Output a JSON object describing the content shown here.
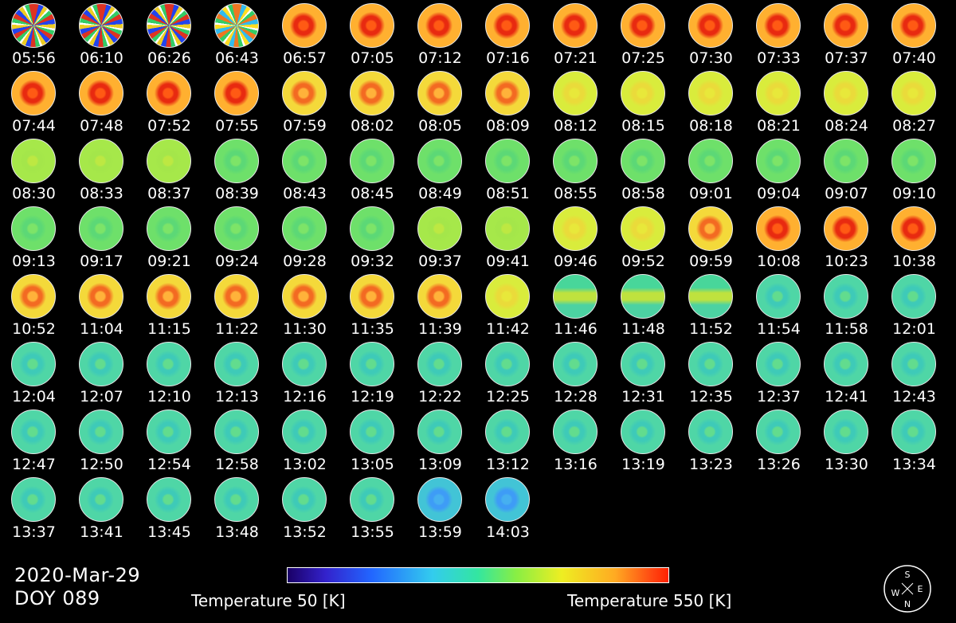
{
  "frames": [
    {
      "time": "05:56",
      "mode": "noise"
    },
    {
      "time": "06:10",
      "mode": "noise"
    },
    {
      "time": "06:26",
      "mode": "noise"
    },
    {
      "time": "06:43",
      "mode": "noise2"
    },
    {
      "time": "06:57",
      "mode": "ringhot"
    },
    {
      "time": "07:05",
      "mode": "ringhot"
    },
    {
      "time": "07:12",
      "mode": "ringhot"
    },
    {
      "time": "07:16",
      "mode": "ringhot"
    },
    {
      "time": "07:21",
      "mode": "ringhot"
    },
    {
      "time": "07:25",
      "mode": "ringhot"
    },
    {
      "time": "07:30",
      "mode": "ringhot"
    },
    {
      "time": "07:33",
      "mode": "ringhot"
    },
    {
      "time": "07:37",
      "mode": "ringhot"
    },
    {
      "time": "07:40",
      "mode": "ringhot"
    },
    {
      "time": "07:44",
      "mode": "ringhot"
    },
    {
      "time": "07:48",
      "mode": "ringhot"
    },
    {
      "time": "07:52",
      "mode": "ringhot"
    },
    {
      "time": "07:55",
      "mode": "ringhot"
    },
    {
      "time": "07:59",
      "mode": "ringwarm"
    },
    {
      "time": "08:02",
      "mode": "ringwarm"
    },
    {
      "time": "08:05",
      "mode": "ringwarm"
    },
    {
      "time": "08:09",
      "mode": "ringwarm"
    },
    {
      "time": "08:12",
      "mode": "yellow"
    },
    {
      "time": "08:15",
      "mode": "yellow"
    },
    {
      "time": "08:18",
      "mode": "yellow"
    },
    {
      "time": "08:21",
      "mode": "yellow"
    },
    {
      "time": "08:24",
      "mode": "yellow"
    },
    {
      "time": "08:27",
      "mode": "yellow"
    },
    {
      "time": "08:30",
      "mode": "ygreen"
    },
    {
      "time": "08:33",
      "mode": "ygreen"
    },
    {
      "time": "08:37",
      "mode": "ygreen"
    },
    {
      "time": "08:39",
      "mode": "green"
    },
    {
      "time": "08:43",
      "mode": "green"
    },
    {
      "time": "08:45",
      "mode": "green"
    },
    {
      "time": "08:49",
      "mode": "green"
    },
    {
      "time": "08:51",
      "mode": "green"
    },
    {
      "time": "08:55",
      "mode": "green"
    },
    {
      "time": "08:58",
      "mode": "green"
    },
    {
      "time": "09:01",
      "mode": "green"
    },
    {
      "time": "09:04",
      "mode": "green"
    },
    {
      "time": "09:07",
      "mode": "green"
    },
    {
      "time": "09:10",
      "mode": "green"
    },
    {
      "time": "09:13",
      "mode": "green"
    },
    {
      "time": "09:17",
      "mode": "green"
    },
    {
      "time": "09:21",
      "mode": "green"
    },
    {
      "time": "09:24",
      "mode": "green"
    },
    {
      "time": "09:28",
      "mode": "green"
    },
    {
      "time": "09:32",
      "mode": "green"
    },
    {
      "time": "09:37",
      "mode": "ygreen"
    },
    {
      "time": "09:41",
      "mode": "ygreen"
    },
    {
      "time": "09:46",
      "mode": "yellow"
    },
    {
      "time": "09:52",
      "mode": "yellow"
    },
    {
      "time": "09:59",
      "mode": "ringwarm"
    },
    {
      "time": "10:08",
      "mode": "ringhot"
    },
    {
      "time": "10:23",
      "mode": "ringhot"
    },
    {
      "time": "10:38",
      "mode": "ringhot"
    },
    {
      "time": "10:52",
      "mode": "ringwarm"
    },
    {
      "time": "11:04",
      "mode": "ringwarm"
    },
    {
      "time": "11:15",
      "mode": "ringwarm"
    },
    {
      "time": "11:22",
      "mode": "ringwarm"
    },
    {
      "time": "11:30",
      "mode": "ringwarm"
    },
    {
      "time": "11:35",
      "mode": "ringwarm"
    },
    {
      "time": "11:39",
      "mode": "ringwarm"
    },
    {
      "time": "11:42",
      "mode": "yellow"
    },
    {
      "time": "11:46",
      "mode": "band"
    },
    {
      "time": "11:48",
      "mode": "band"
    },
    {
      "time": "11:52",
      "mode": "band"
    },
    {
      "time": "11:54",
      "mode": "cyan"
    },
    {
      "time": "11:58",
      "mode": "cyan"
    },
    {
      "time": "12:01",
      "mode": "cyan"
    },
    {
      "time": "12:04",
      "mode": "cyan"
    },
    {
      "time": "12:07",
      "mode": "cyan"
    },
    {
      "time": "12:10",
      "mode": "cyan"
    },
    {
      "time": "12:13",
      "mode": "cyan"
    },
    {
      "time": "12:16",
      "mode": "cyan"
    },
    {
      "time": "12:19",
      "mode": "cyan"
    },
    {
      "time": "12:22",
      "mode": "cyan"
    },
    {
      "time": "12:25",
      "mode": "cyan"
    },
    {
      "time": "12:28",
      "mode": "cyan"
    },
    {
      "time": "12:31",
      "mode": "cyan"
    },
    {
      "time": "12:35",
      "mode": "cyan"
    },
    {
      "time": "12:37",
      "mode": "cyan"
    },
    {
      "time": "12:41",
      "mode": "cyan"
    },
    {
      "time": "12:43",
      "mode": "cyan"
    },
    {
      "time": "12:47",
      "mode": "cyan"
    },
    {
      "time": "12:50",
      "mode": "cyan"
    },
    {
      "time": "12:54",
      "mode": "cyan"
    },
    {
      "time": "12:58",
      "mode": "cyan"
    },
    {
      "time": "13:02",
      "mode": "cyan"
    },
    {
      "time": "13:05",
      "mode": "cyan"
    },
    {
      "time": "13:09",
      "mode": "cyan"
    },
    {
      "time": "13:12",
      "mode": "cyan"
    },
    {
      "time": "13:16",
      "mode": "cyan"
    },
    {
      "time": "13:19",
      "mode": "cyan"
    },
    {
      "time": "13:23",
      "mode": "cyan"
    },
    {
      "time": "13:26",
      "mode": "cyan"
    },
    {
      "time": "13:30",
      "mode": "cyan"
    },
    {
      "time": "13:34",
      "mode": "cyan"
    },
    {
      "time": "13:37",
      "mode": "cyan"
    },
    {
      "time": "13:41",
      "mode": "cyan"
    },
    {
      "time": "13:45",
      "mode": "cyan"
    },
    {
      "time": "13:48",
      "mode": "cyan"
    },
    {
      "time": "13:52",
      "mode": "cyan"
    },
    {
      "time": "13:55",
      "mode": "cyan"
    },
    {
      "time": "13:59",
      "mode": "cool"
    },
    {
      "time": "14:03",
      "mode": "cool"
    }
  ],
  "date": "2020-Mar-29",
  "doy": "DOY 089",
  "colorbar": {
    "min_label": "Temperature 50 [K]",
    "max_label": "Temperature 550 [K]",
    "min_value": 50,
    "max_value": 550,
    "unit": "K",
    "colors": [
      "#1a0066",
      "#3322cc",
      "#2266ff",
      "#33ccee",
      "#33e6a0",
      "#88ee44",
      "#eeee22",
      "#ffaa22",
      "#ff4411",
      "#ff2200"
    ]
  },
  "compass": {
    "north": "N",
    "south": "S",
    "east": "E",
    "west": "W",
    "icon": "compass-rose-icon"
  },
  "mode_colors": {
    "ringhot": {
      "base": "#ffb030",
      "inner": "#ff5a14",
      "ring": "#e82a10"
    },
    "ringwarm": {
      "base": "#f4d93a",
      "inner": "#ffb23a",
      "ring": "#f36a22"
    },
    "yellow": {
      "base": "#d9ec3c",
      "inner": "#e8e83a",
      "ring": "#eadb3a"
    },
    "ygreen": {
      "base": "#a6e84a",
      "inner": "#bde842",
      "ring": "#a4e64a"
    },
    "green": {
      "base": "#6ee06a",
      "inner": "#7de468",
      "ring": "#5cd876"
    },
    "band": {
      "base": "#48d69a",
      "inner": "#bfe23e",
      "ring": "#4cd2a2"
    },
    "cyan": {
      "base": "#4fd6a6",
      "inner": "#62dc8e",
      "ring": "#3ecab8"
    },
    "cool": {
      "base": "#42c4d6",
      "inner": "#46b0f0",
      "ring": "#3e9cf6"
    },
    "noise": {
      "base": "#dd3322",
      "inner": "#2244ee",
      "ring": "#eecc22"
    },
    "noise2": {
      "base": "#ee7722",
      "inner": "#33bbee",
      "ring": "#ffdd22"
    }
  }
}
